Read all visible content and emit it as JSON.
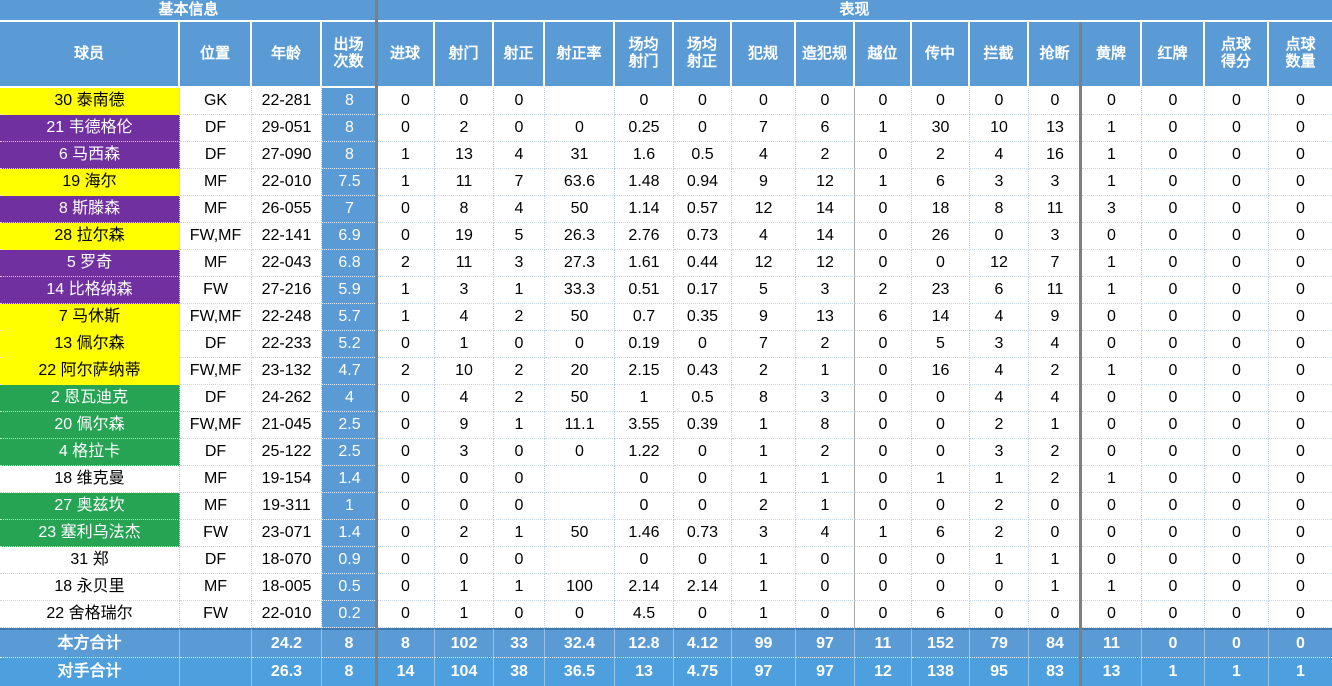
{
  "sections": [
    {
      "label": "基本信息"
    },
    {
      "label": "表现"
    }
  ],
  "columns": [
    {
      "key": "player",
      "label": "球员"
    },
    {
      "key": "position",
      "label": "位置"
    },
    {
      "key": "age",
      "label": "年龄"
    },
    {
      "key": "apps",
      "label": "出场\n次数"
    },
    {
      "key": "goals",
      "label": "进球"
    },
    {
      "key": "shots",
      "label": "射门"
    },
    {
      "key": "shots-on-target",
      "label": "射正"
    },
    {
      "key": "shot-accuracy",
      "label": "射正率"
    },
    {
      "key": "shots-per-game",
      "label": "场均\n射门"
    },
    {
      "key": "sot-per-game",
      "label": "场均\n射正"
    },
    {
      "key": "fouls",
      "label": "犯规"
    },
    {
      "key": "fouls-drawn",
      "label": "造犯规"
    },
    {
      "key": "offsides",
      "label": "越位"
    },
    {
      "key": "crosses",
      "label": "传中"
    },
    {
      "key": "interceptions",
      "label": "拦截"
    },
    {
      "key": "tackles",
      "label": "抢断"
    },
    {
      "key": "yellow-cards",
      "label": "黄牌"
    },
    {
      "key": "red-cards",
      "label": "红牌"
    },
    {
      "key": "penalty-goals",
      "label": "点球\n得分"
    },
    {
      "key": "penalty-count",
      "label": "点球\n数量"
    }
  ],
  "players": [
    {
      "name": "30 泰南德",
      "highlight": "yellow",
      "position": "GK",
      "age": "22-281",
      "apps": "8",
      "stats": [
        "0",
        "0",
        "0",
        "",
        "0",
        "0",
        "0",
        "0",
        "0",
        "0",
        "0",
        "0",
        "0",
        "0",
        "0",
        "0"
      ]
    },
    {
      "name": "21 韦德格伦",
      "highlight": "purple",
      "position": "DF",
      "age": "29-051",
      "apps": "8",
      "stats": [
        "0",
        "2",
        "0",
        "0",
        "0.25",
        "0",
        "7",
        "6",
        "1",
        "30",
        "10",
        "13",
        "1",
        "0",
        "0",
        "0"
      ]
    },
    {
      "name": "6 马西森",
      "highlight": "purple",
      "position": "DF",
      "age": "27-090",
      "apps": "8",
      "stats": [
        "1",
        "13",
        "4",
        "31",
        "1.6",
        "0.5",
        "4",
        "2",
        "0",
        "2",
        "4",
        "16",
        "1",
        "0",
        "0",
        "0"
      ]
    },
    {
      "name": "19 海尔",
      "highlight": "yellow",
      "position": "MF",
      "age": "22-010",
      "apps": "7.5",
      "stats": [
        "1",
        "11",
        "7",
        "63.6",
        "1.48",
        "0.94",
        "9",
        "12",
        "1",
        "6",
        "3",
        "3",
        "1",
        "0",
        "0",
        "0"
      ]
    },
    {
      "name": "8 斯滕森",
      "highlight": "purple",
      "position": "MF",
      "age": "26-055",
      "apps": "7",
      "stats": [
        "0",
        "8",
        "4",
        "50",
        "1.14",
        "0.57",
        "12",
        "14",
        "0",
        "18",
        "8",
        "11",
        "3",
        "0",
        "0",
        "0"
      ]
    },
    {
      "name": "28 拉尔森",
      "highlight": "yellow",
      "position": "FW,MF",
      "age": "22-141",
      "apps": "6.9",
      "stats": [
        "0",
        "19",
        "5",
        "26.3",
        "2.76",
        "0.73",
        "4",
        "14",
        "0",
        "26",
        "0",
        "3",
        "0",
        "0",
        "0",
        "0"
      ]
    },
    {
      "name": "5 罗奇",
      "highlight": "purple",
      "position": "MF",
      "age": "22-043",
      "apps": "6.8",
      "stats": [
        "2",
        "11",
        "3",
        "27.3",
        "1.61",
        "0.44",
        "12",
        "12",
        "0",
        "0",
        "12",
        "7",
        "1",
        "0",
        "0",
        "0"
      ]
    },
    {
      "name": "14 比格纳森",
      "highlight": "purple",
      "position": "FW",
      "age": "27-216",
      "apps": "5.9",
      "stats": [
        "1",
        "3",
        "1",
        "33.3",
        "0.51",
        "0.17",
        "5",
        "3",
        "2",
        "23",
        "6",
        "11",
        "1",
        "0",
        "0",
        "0"
      ]
    },
    {
      "name": "7 马休斯",
      "highlight": "yellow",
      "position": "FW,MF",
      "age": "22-248",
      "apps": "5.7",
      "stats": [
        "1",
        "4",
        "2",
        "50",
        "0.7",
        "0.35",
        "9",
        "13",
        "6",
        "14",
        "4",
        "9",
        "0",
        "0",
        "0",
        "0"
      ]
    },
    {
      "name": "13 佩尔森",
      "highlight": "yellow",
      "position": "DF",
      "age": "22-233",
      "apps": "5.2",
      "stats": [
        "0",
        "1",
        "0",
        "0",
        "0.19",
        "0",
        "7",
        "2",
        "0",
        "5",
        "3",
        "4",
        "0",
        "0",
        "0",
        "0"
      ]
    },
    {
      "name": "22 阿尔萨纳蒂",
      "highlight": "yellow",
      "position": "FW,MF",
      "age": "23-132",
      "apps": "4.7",
      "stats": [
        "2",
        "10",
        "2",
        "20",
        "2.15",
        "0.43",
        "2",
        "1",
        "0",
        "16",
        "4",
        "2",
        "1",
        "0",
        "0",
        "0"
      ]
    },
    {
      "name": "2 恩瓦迪克",
      "highlight": "green",
      "position": "DF",
      "age": "24-262",
      "apps": "4",
      "stats": [
        "0",
        "4",
        "2",
        "50",
        "1",
        "0.5",
        "8",
        "3",
        "0",
        "0",
        "4",
        "4",
        "0",
        "0",
        "0",
        "0"
      ]
    },
    {
      "name": "20 佩尔森",
      "highlight": "green",
      "position": "FW,MF",
      "age": "21-045",
      "apps": "2.5",
      "stats": [
        "0",
        "9",
        "1",
        "11.1",
        "3.55",
        "0.39",
        "1",
        "8",
        "0",
        "0",
        "2",
        "1",
        "0",
        "0",
        "0",
        "0"
      ]
    },
    {
      "name": "4 格拉卡",
      "highlight": "green",
      "position": "DF",
      "age": "25-122",
      "apps": "2.5",
      "stats": [
        "0",
        "3",
        "0",
        "0",
        "1.22",
        "0",
        "1",
        "2",
        "0",
        "0",
        "3",
        "2",
        "0",
        "0",
        "0",
        "0"
      ]
    },
    {
      "name": "18 维克曼",
      "highlight": "none",
      "position": "MF",
      "age": "19-154",
      "apps": "1.4",
      "stats": [
        "0",
        "0",
        "0",
        "",
        "0",
        "0",
        "1",
        "1",
        "0",
        "1",
        "1",
        "2",
        "1",
        "0",
        "0",
        "0"
      ]
    },
    {
      "name": "27 奥兹坎",
      "highlight": "green",
      "position": "MF",
      "age": "19-311",
      "apps": "1",
      "stats": [
        "0",
        "0",
        "0",
        "",
        "0",
        "0",
        "2",
        "1",
        "0",
        "0",
        "2",
        "0",
        "0",
        "0",
        "0",
        "0"
      ]
    },
    {
      "name": "23 塞利乌法杰",
      "highlight": "green",
      "position": "FW",
      "age": "23-071",
      "apps": "1.4",
      "stats": [
        "0",
        "2",
        "1",
        "50",
        "1.46",
        "0.73",
        "3",
        "4",
        "1",
        "6",
        "2",
        "0",
        "0",
        "0",
        "0",
        "0"
      ]
    },
    {
      "name": "31 郑",
      "highlight": "none",
      "position": "DF",
      "age": "18-070",
      "apps": "0.9",
      "stats": [
        "0",
        "0",
        "0",
        "",
        "0",
        "0",
        "1",
        "0",
        "0",
        "0",
        "1",
        "1",
        "0",
        "0",
        "0",
        "0"
      ]
    },
    {
      "name": "18 永贝里",
      "highlight": "none",
      "position": "MF",
      "age": "18-005",
      "apps": "0.5",
      "stats": [
        "0",
        "1",
        "1",
        "100",
        "2.14",
        "2.14",
        "1",
        "0",
        "0",
        "0",
        "0",
        "1",
        "1",
        "0",
        "0",
        "0"
      ]
    },
    {
      "name": "22 舍格瑞尔",
      "highlight": "none",
      "position": "FW",
      "age": "22-010",
      "apps": "0.2",
      "stats": [
        "0",
        "1",
        "0",
        "0",
        "4.5",
        "0",
        "1",
        "0",
        "0",
        "6",
        "0",
        "0",
        "0",
        "0",
        "0",
        "0"
      ]
    }
  ],
  "totals": [
    {
      "name": "本方合计",
      "position": "",
      "age": "24.2",
      "apps": "8",
      "stats": [
        "8",
        "102",
        "33",
        "32.4",
        "12.8",
        "4.12",
        "99",
        "97",
        "11",
        "152",
        "79",
        "84",
        "11",
        "0",
        "0",
        "0"
      ]
    },
    {
      "name": "对手合计",
      "position": "",
      "age": "26.3",
      "apps": "8",
      "stats": [
        "14",
        "104",
        "38",
        "36.5",
        "13",
        "4.75",
        "97",
        "97",
        "12",
        "138",
        "95",
        "83",
        "13",
        "1",
        "1",
        "1"
      ]
    }
  ],
  "colors": {
    "header_blue": "#5b9bd5",
    "highlight_yellow": "#ffff00",
    "highlight_purple": "#7030a0",
    "highlight_green": "#26a454",
    "totals_row_blue": "#5b9bd5",
    "opponent_row_blue": "#4e9fdd",
    "thick_divider_gray": "#7f7f7f"
  }
}
